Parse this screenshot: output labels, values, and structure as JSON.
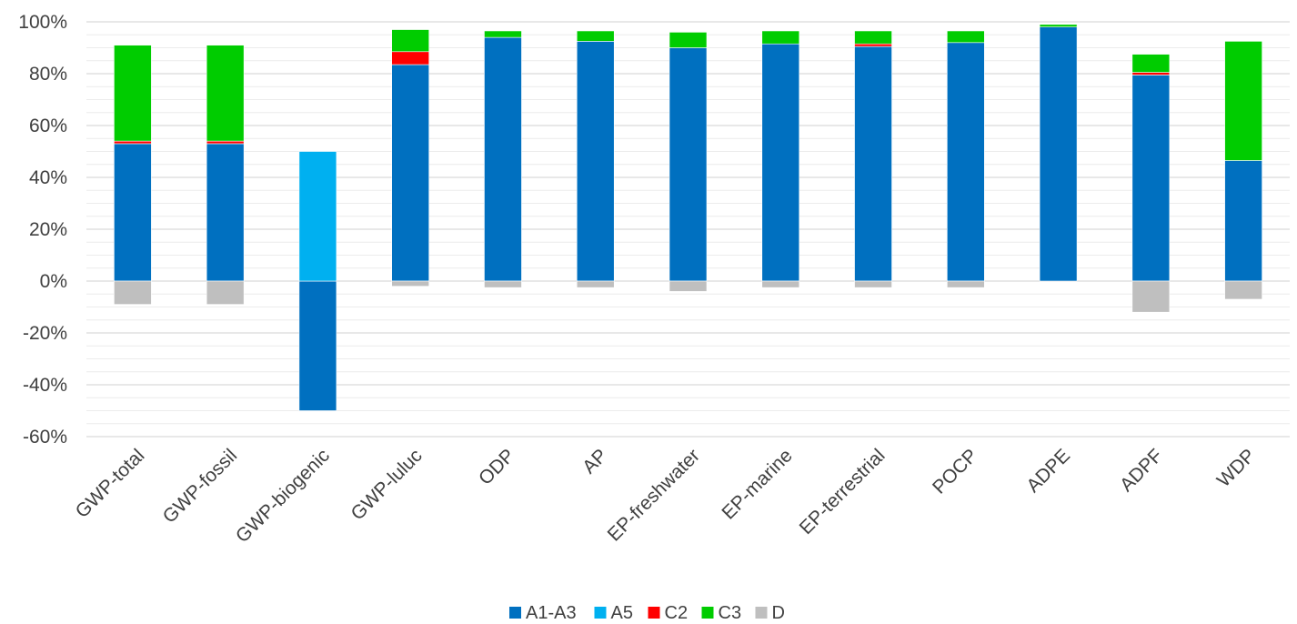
{
  "chart_data": {
    "type": "bar",
    "stacked": true,
    "categories": [
      "GWP-total",
      "GWP-fossil",
      "GWP-biogenic",
      "GWP-luluc",
      "ODP",
      "AP",
      "EP-freshwater",
      "EP-marine",
      "EP-terrestrial",
      "POCP",
      "ADPE",
      "ADPF",
      "WDP"
    ],
    "series": [
      {
        "name": "A1-A3",
        "color": "#0070C0",
        "values": [
          53,
          53,
          -50,
          83.5,
          94,
          92.5,
          90,
          91.5,
          90.5,
          92,
          98,
          79.5,
          46.5
        ]
      },
      {
        "name": "A5",
        "color": "#00B0F0",
        "values": [
          0,
          0,
          50,
          0,
          0,
          0,
          0,
          0,
          0,
          0,
          0,
          0,
          0
        ]
      },
      {
        "name": "C2",
        "color": "#FF0000",
        "values": [
          1,
          1,
          0,
          5,
          0,
          0,
          0,
          0,
          1,
          0,
          0,
          1,
          0
        ]
      },
      {
        "name": "C3",
        "color": "#00CC00",
        "values": [
          37,
          37,
          0,
          8.5,
          2.5,
          4,
          6,
          5,
          5,
          4.5,
          1,
          7,
          46
        ]
      },
      {
        "name": "D",
        "color": "#BFBFBF",
        "values": [
          -9,
          -9,
          0,
          -2,
          -2.5,
          -2.5,
          -4,
          -2.5,
          -2.5,
          -2.5,
          0,
          -12,
          -7
        ]
      }
    ],
    "yticks": [
      "100%",
      "80%",
      "60%",
      "40%",
      "20%",
      "0%",
      "-20%",
      "-40%",
      "-60%"
    ],
    "ylim": [
      -60,
      100
    ],
    "ytick_step": 20,
    "minor_step": 5,
    "grid": true,
    "legend": "bottom-center",
    "title": "",
    "xlabel": "",
    "ylabel": ""
  }
}
